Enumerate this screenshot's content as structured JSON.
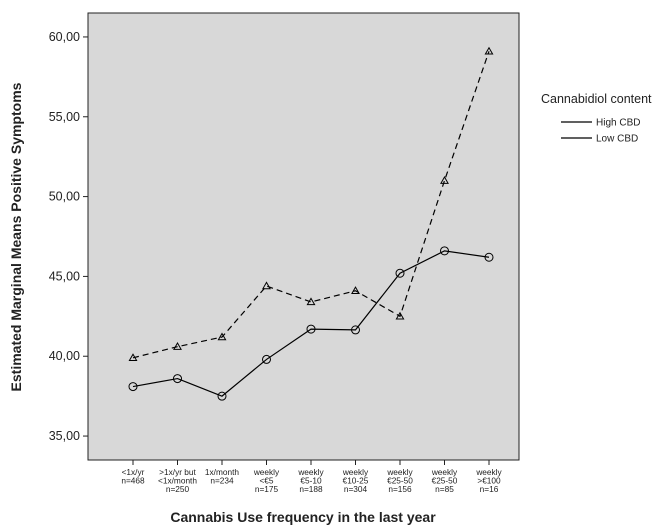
{
  "chart_data": {
    "type": "line",
    "xlabel": "Cannabis Use frequency in the last year",
    "ylabel": "Estimated Marginal Means Positive Symptoms",
    "ylim": [
      33.5,
      61.5
    ],
    "yticks": [
      35,
      40,
      45,
      50,
      55,
      60
    ],
    "ytick_labels": [
      "35,00",
      "40,00",
      "45,00",
      "50,00",
      "55,00",
      "60,00"
    ],
    "grid": false,
    "legend_position": "right",
    "legend_title": "Cannabidiol content",
    "categories": [
      [
        "<1x/yr",
        "n=468"
      ],
      [
        ">1x/yr but",
        "<1x/month",
        "n=250"
      ],
      [
        "1x/month",
        "n=234"
      ],
      [
        "weekly",
        "<€5",
        "n=175"
      ],
      [
        "weekly",
        "€5-10",
        "n=188"
      ],
      [
        "weekly",
        "€10-25",
        "n=304"
      ],
      [
        "weekly",
        "€25-50",
        "n=156"
      ],
      [
        "weekly",
        "€25-50",
        "n=85"
      ],
      [
        "weekly",
        ">€100",
        "n=16"
      ]
    ],
    "series": [
      {
        "name": "High CBD",
        "line_style": "solid",
        "marker": "circle",
        "color": "#000000",
        "values": [
          38.1,
          38.6,
          37.5,
          39.8,
          41.7,
          41.65,
          45.2,
          46.6,
          46.2
        ]
      },
      {
        "name": "Low CBD",
        "line_style": "dashed",
        "marker": "triangle",
        "color": "#000000",
        "values": [
          39.9,
          40.6,
          41.2,
          44.4,
          43.4,
          44.1,
          42.5,
          51.0,
          59.1
        ]
      }
    ],
    "colors": {
      "plot_background": "#d8d8d8",
      "page_background": "#ffffff"
    }
  }
}
